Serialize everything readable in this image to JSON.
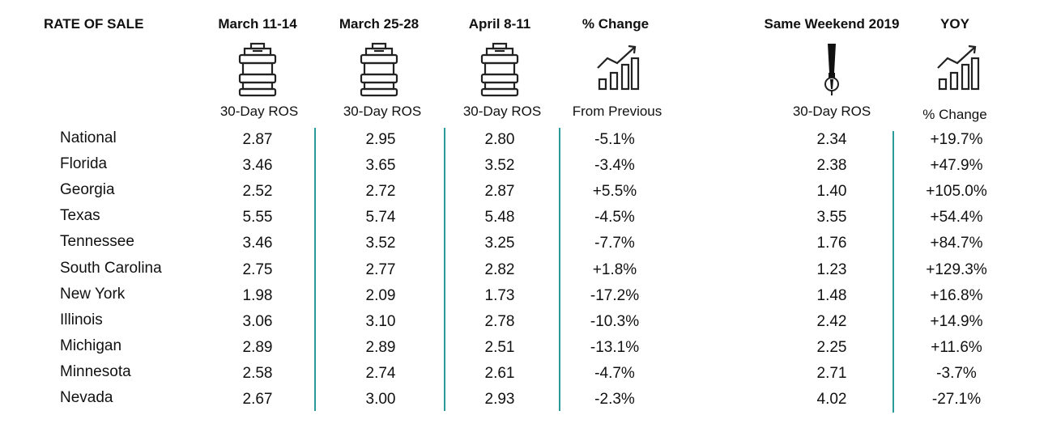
{
  "headers": {
    "rate_of_sale": "RATE OF SALE",
    "march_11_14": "March 11-14",
    "march_25_28": "March 25-28",
    "april_8_11": "April 8-11",
    "pct_change": "% Change",
    "same_weekend_2019": "Same Weekend 2019",
    "yoy": "YOY"
  },
  "subheaders": {
    "ros1": "30-Day ROS",
    "ros2": "30-Day ROS",
    "ros3": "30-Day ROS",
    "from_previous": "From Previous",
    "ros2019": "30-Day ROS",
    "yoy_change": "% Change"
  },
  "icons": [
    "keg-icon",
    "keg-icon",
    "keg-icon",
    "growth-chart-icon",
    "beer-tap-icon",
    "growth-chart-icon"
  ],
  "accent_color": "#2a9a9a",
  "rows": [
    {
      "label": "National",
      "c1": "2.87",
      "c2": "2.95",
      "c3": "2.80",
      "pct": "-5.1%",
      "y2019": "2.34",
      "yoy": "+19.7%"
    },
    {
      "label": "Florida",
      "c1": "3.46",
      "c2": "3.65",
      "c3": "3.52",
      "pct": "-3.4%",
      "y2019": "2.38",
      "yoy": "+47.9%"
    },
    {
      "label": "Georgia",
      "c1": "2.52",
      "c2": "2.72",
      "c3": "2.87",
      "pct": "+5.5%",
      "y2019": "1.40",
      "yoy": "+105.0%"
    },
    {
      "label": "Texas",
      "c1": "5.55",
      "c2": "5.74",
      "c3": "5.48",
      "pct": "-4.5%",
      "y2019": "3.55",
      "yoy": "+54.4%"
    },
    {
      "label": "Tennessee",
      "c1": "3.46",
      "c2": "3.52",
      "c3": "3.25",
      "pct": "-7.7%",
      "y2019": "1.76",
      "yoy": "+84.7%"
    },
    {
      "label": "South Carolina",
      "c1": "2.75",
      "c2": "2.77",
      "c3": "2.82",
      "pct": "+1.8%",
      "y2019": "1.23",
      "yoy": "+129.3%"
    },
    {
      "label": "New York",
      "c1": "1.98",
      "c2": "2.09",
      "c3": "1.73",
      "pct": "-17.2%",
      "y2019": "1.48",
      "yoy": "+16.8%"
    },
    {
      "label": "Illinois",
      "c1": "3.06",
      "c2": "3.10",
      "c3": "2.78",
      "pct": "-10.3%",
      "y2019": "2.42",
      "yoy": "+14.9%"
    },
    {
      "label": "Michigan",
      "c1": "2.89",
      "c2": "2.89",
      "c3": "2.51",
      "pct": "-13.1%",
      "y2019": "2.25",
      "yoy": "+11.6%"
    },
    {
      "label": "Minnesota",
      "c1": "2.58",
      "c2": "2.74",
      "c3": "2.61",
      "pct": "-4.7%",
      "y2019": "2.71",
      "yoy": "-3.7%"
    },
    {
      "label": "Nevada",
      "c1": "2.67",
      "c2": "3.00",
      "c3": "2.93",
      "pct": "-2.3%",
      "y2019": "4.02",
      "yoy": "-27.1%"
    }
  ]
}
